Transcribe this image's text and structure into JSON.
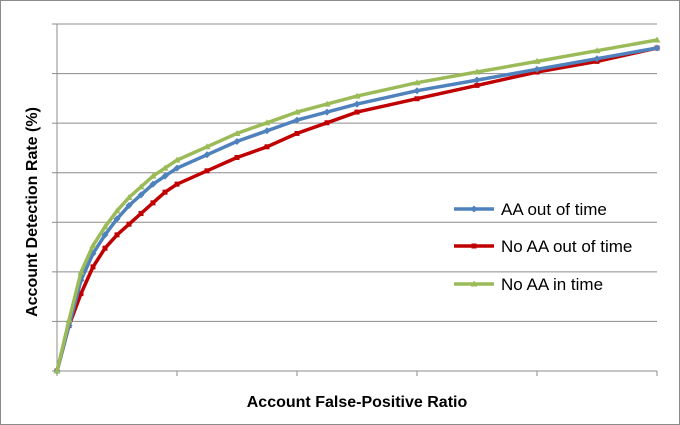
{
  "chart_data": {
    "type": "line",
    "title": "",
    "xlabel": "Account False-Positive Ratio",
    "ylabel": "Account Detection Rate (%)",
    "x_tick_labels": [],
    "y_tick_labels": [],
    "xlim": [
      0,
      10
    ],
    "ylim": [
      0,
      6.5
    ],
    "grid": {
      "horizontal": true,
      "vertical": false
    },
    "legend_position": "right",
    "series": [
      {
        "name": "AA out of time",
        "color": "#4f81bd",
        "marker": "diamond",
        "x": [
          0,
          0.2,
          0.4,
          0.6,
          0.8,
          1.0,
          1.2,
          1.4,
          1.6,
          1.8,
          2.0,
          2.5,
          3.0,
          3.5,
          4.0,
          4.5,
          5.0,
          6.0,
          7.0,
          8.0,
          9.0,
          10.0
        ],
        "y": [
          0,
          0.85,
          1.7,
          2.2,
          2.55,
          2.85,
          3.1,
          3.3,
          3.5,
          3.65,
          3.8,
          4.05,
          4.3,
          4.5,
          4.7,
          4.85,
          5.0,
          5.25,
          5.45,
          5.65,
          5.85,
          6.05
        ]
      },
      {
        "name": "No AA out of time",
        "color": "#c00000",
        "marker": "square",
        "x": [
          0,
          0.2,
          0.4,
          0.6,
          0.8,
          1.0,
          1.2,
          1.4,
          1.6,
          1.8,
          2.0,
          2.5,
          3.0,
          3.5,
          4.0,
          4.5,
          5.0,
          6.0,
          7.0,
          8.0,
          9.0,
          10.0
        ],
        "y": [
          0,
          0.85,
          1.45,
          1.95,
          2.3,
          2.55,
          2.75,
          2.95,
          3.15,
          3.35,
          3.5,
          3.75,
          4.0,
          4.2,
          4.45,
          4.65,
          4.85,
          5.1,
          5.35,
          5.6,
          5.8,
          6.05
        ]
      },
      {
        "name": "No AA in time",
        "color": "#9bbb59",
        "marker": "triangle",
        "x": [
          0,
          0.2,
          0.4,
          0.6,
          0.8,
          1.0,
          1.2,
          1.4,
          1.6,
          1.8,
          2.0,
          2.5,
          3.0,
          3.5,
          4.0,
          4.5,
          5.0,
          6.0,
          7.0,
          8.0,
          9.0,
          10.0
        ],
        "y": [
          0,
          0.95,
          1.85,
          2.35,
          2.7,
          3.0,
          3.25,
          3.45,
          3.65,
          3.8,
          3.95,
          4.2,
          4.45,
          4.65,
          4.85,
          5.0,
          5.15,
          5.4,
          5.6,
          5.8,
          6.0,
          6.2
        ]
      }
    ]
  }
}
